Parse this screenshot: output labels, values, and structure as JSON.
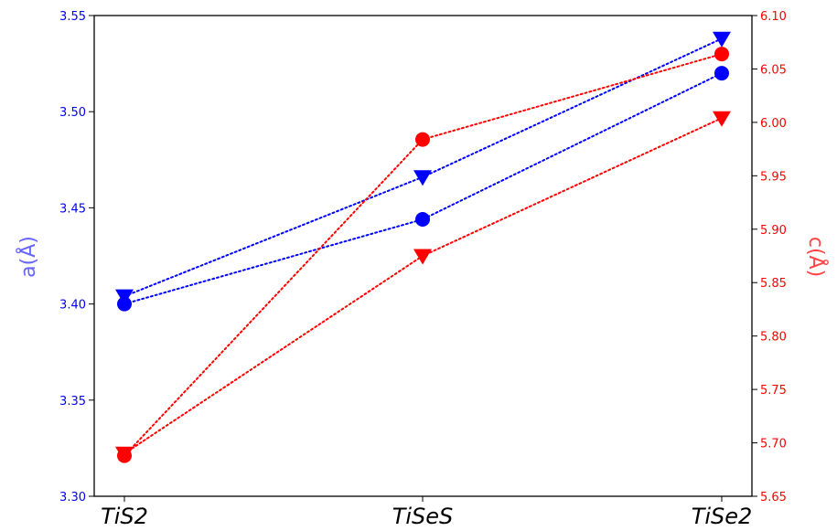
{
  "chart_data": {
    "type": "line",
    "categories": [
      "TiS2",
      "TiSeS",
      "TiSe2"
    ],
    "left_axis": {
      "label": "a(Å)",
      "range": [
        3.3,
        3.55
      ],
      "ticks": [
        "3.30",
        "3.35",
        "3.40",
        "3.45",
        "3.50",
        "3.55"
      ],
      "color": "#0000ff",
      "label_color": "#6666ff"
    },
    "right_axis": {
      "label": "c(Å)",
      "range": [
        5.65,
        6.1
      ],
      "ticks": [
        "5.65",
        "5.70",
        "5.75",
        "5.80",
        "5.85",
        "5.90",
        "5.95",
        "6.00",
        "6.05",
        "6.10"
      ],
      "color": "#ff0000",
      "label_color": "#ff4444"
    },
    "series": [
      {
        "axis": "left",
        "marker": "circle",
        "color": "#0000ff",
        "values": [
          3.4,
          3.444,
          3.52
        ]
      },
      {
        "axis": "left",
        "marker": "triangle-down",
        "color": "#0000ff",
        "values": [
          3.404,
          3.466,
          3.538
        ]
      },
      {
        "axis": "right",
        "marker": "circle",
        "color": "#ff0000",
        "values": [
          5.688,
          5.984,
          6.064
        ]
      },
      {
        "axis": "right",
        "marker": "triangle-down",
        "color": "#ff0000",
        "values": [
          5.69,
          5.875,
          6.004
        ]
      }
    ],
    "line_style": "dotted",
    "grid": false,
    "legend": "none"
  }
}
